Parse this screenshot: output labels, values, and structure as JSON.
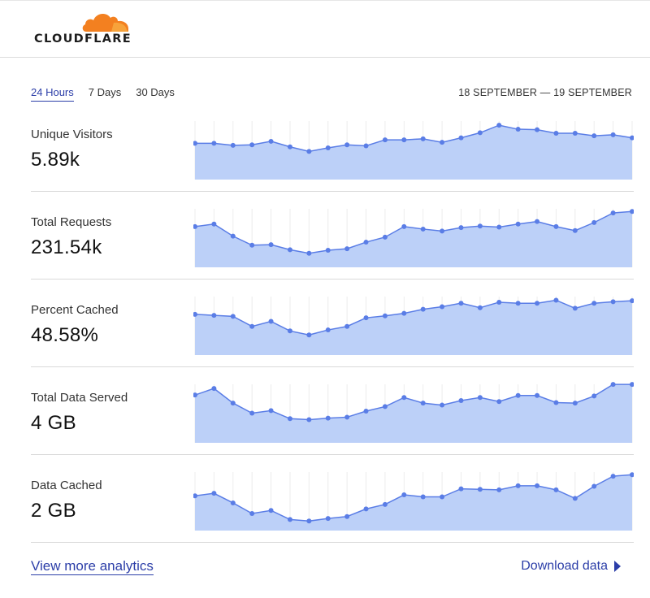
{
  "brand": {
    "name": "CLOUDFLARE",
    "icon": "cloud-icon",
    "color": "#f38020"
  },
  "tabs": [
    {
      "label": "24 Hours",
      "active": true
    },
    {
      "label": "7 Days",
      "active": false
    },
    {
      "label": "30 Days",
      "active": false
    }
  ],
  "date_range": "18 SEPTEMBER — 19 SEPTEMBER",
  "colors": {
    "accent": "#2c3ea8",
    "line": "#5a7de6",
    "fill": "#bcd0f8"
  },
  "metrics": [
    {
      "label": "Unique Visitors",
      "value": "5.89k"
    },
    {
      "label": "Total Requests",
      "value": "231.54k"
    },
    {
      "label": "Percent Cached",
      "value": "48.58%"
    },
    {
      "label": "Total Data Served",
      "value": "4 GB"
    },
    {
      "label": "Data Cached",
      "value": "2 GB"
    }
  ],
  "chart_data": [
    {
      "type": "area",
      "series": [
        {
          "values": [
            0.64,
            0.64,
            0.6,
            0.61,
            0.68,
            0.57,
            0.48,
            0.55,
            0.61,
            0.59,
            0.71,
            0.71,
            0.73,
            0.66,
            0.75,
            0.85,
            1.0,
            0.92,
            0.91,
            0.84,
            0.84,
            0.79,
            0.81,
            0.75
          ]
        }
      ]
    },
    {
      "type": "area",
      "series": [
        {
          "values": [
            0.73,
            0.78,
            0.54,
            0.36,
            0.37,
            0.27,
            0.2,
            0.26,
            0.29,
            0.42,
            0.52,
            0.73,
            0.68,
            0.64,
            0.71,
            0.74,
            0.72,
            0.78,
            0.83,
            0.73,
            0.65,
            0.81,
            1.0,
            1.03
          ]
        }
      ]
    },
    {
      "type": "area",
      "series": [
        {
          "values": [
            0.73,
            0.71,
            0.69,
            0.49,
            0.59,
            0.4,
            0.32,
            0.42,
            0.49,
            0.66,
            0.7,
            0.75,
            0.83,
            0.88,
            0.95,
            0.86,
            0.97,
            0.95,
            0.95,
            1.01,
            0.85,
            0.95,
            0.98,
            1.0
          ]
        }
      ]
    },
    {
      "type": "area",
      "series": [
        {
          "values": [
            0.87,
            1.0,
            0.71,
            0.51,
            0.56,
            0.4,
            0.38,
            0.41,
            0.43,
            0.55,
            0.64,
            0.82,
            0.71,
            0.67,
            0.76,
            0.82,
            0.74,
            0.86,
            0.86,
            0.72,
            0.71,
            0.85,
            1.08,
            1.08
          ]
        }
      ]
    },
    {
      "type": "area",
      "series": [
        {
          "values": [
            0.61,
            0.66,
            0.47,
            0.26,
            0.32,
            0.14,
            0.11,
            0.16,
            0.2,
            0.35,
            0.44,
            0.63,
            0.59,
            0.59,
            0.75,
            0.74,
            0.73,
            0.81,
            0.81,
            0.73,
            0.56,
            0.8,
            1.0,
            1.03
          ]
        }
      ]
    }
  ],
  "footer": {
    "link": "View more analytics",
    "download": "Download data",
    "download_icon": "triangle-right-icon"
  }
}
